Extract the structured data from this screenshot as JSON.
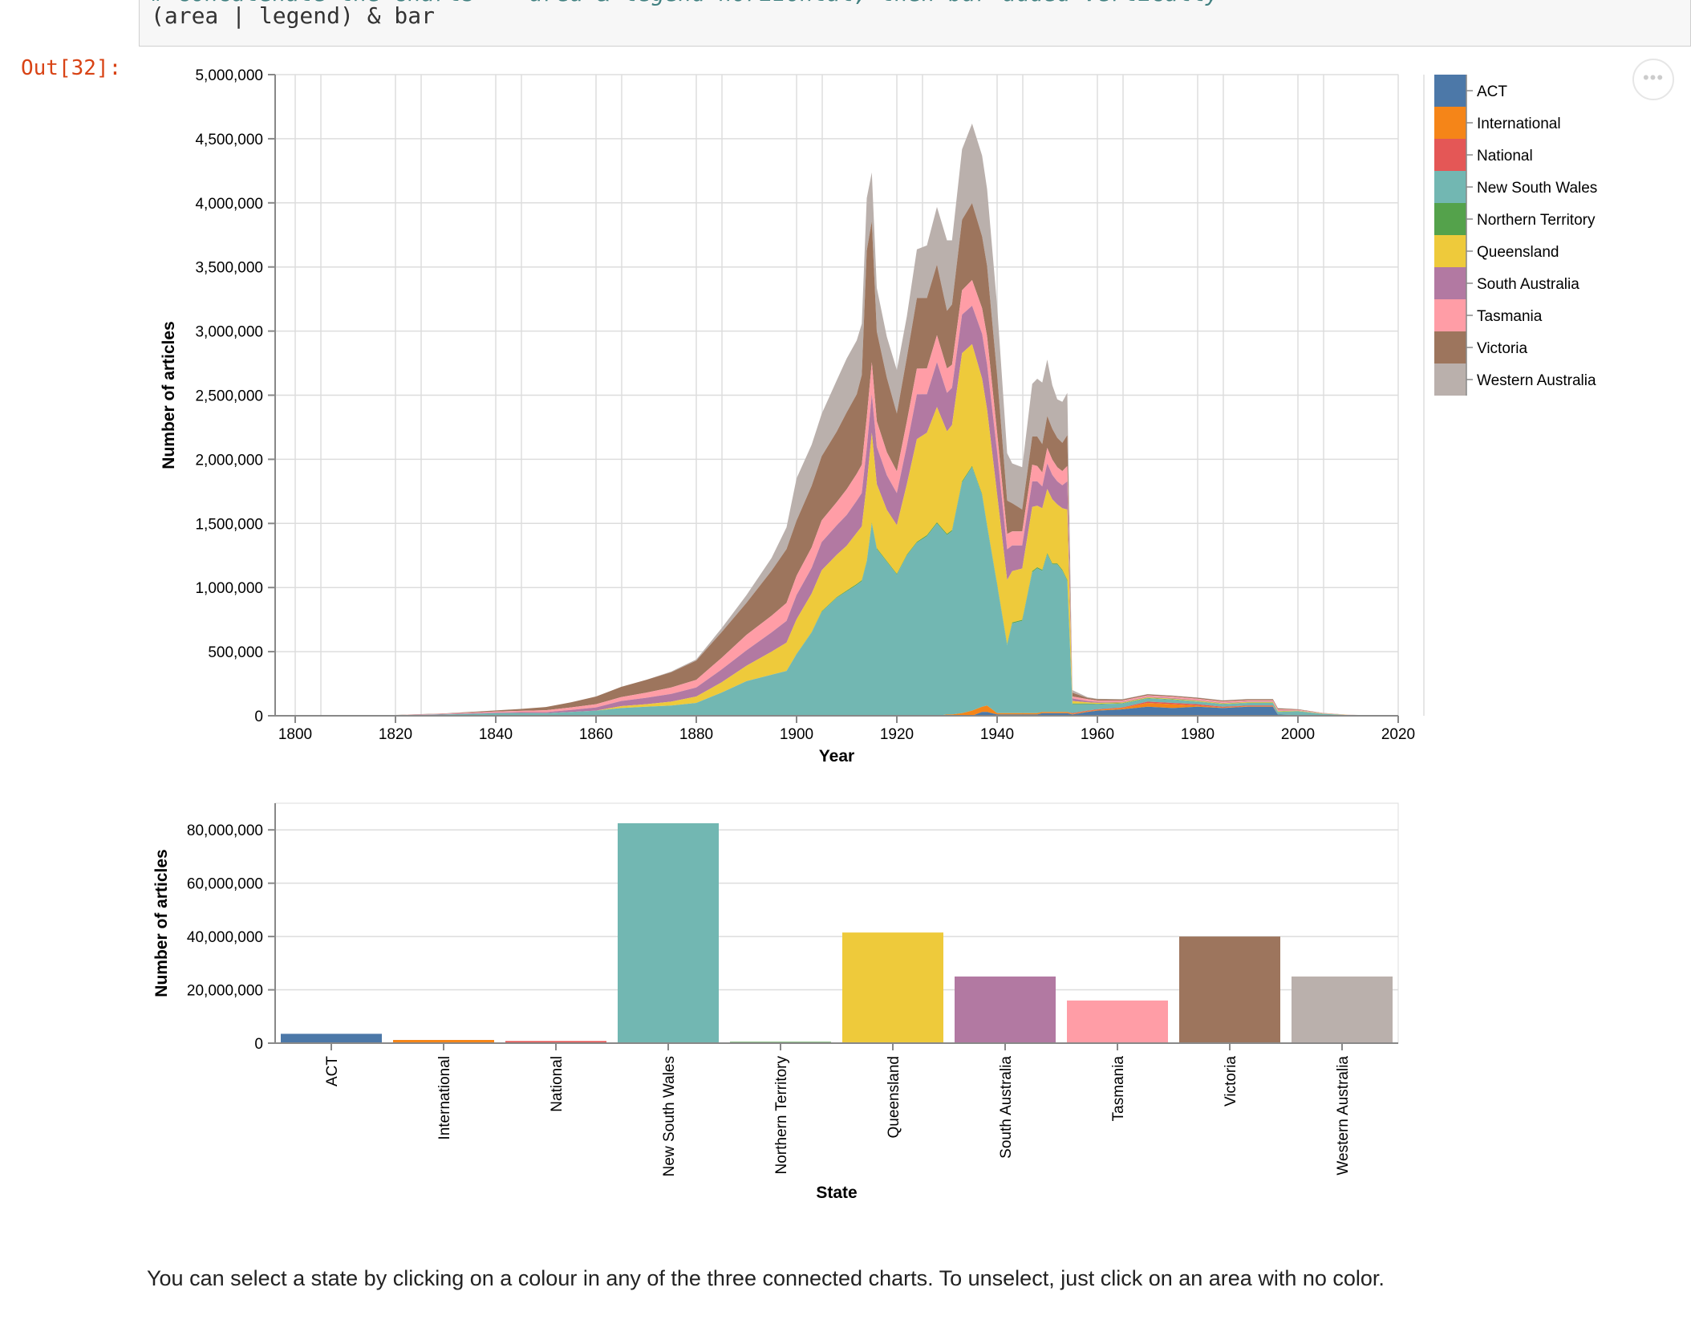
{
  "notebook": {
    "comment_line": "# concatenate the charts -- area & legend horizontal, then bar added vertically",
    "code_line": "(area | legend) & bar",
    "out_prompt": "Out[32]:",
    "more_icon": "ellipsis-icon",
    "more_glyph": "•••",
    "caption": "You can select a state by clicking on a colour in any of the three connected charts. To unselect, just click on an area with no color."
  },
  "chart_data": [
    {
      "type": "area",
      "stacked": true,
      "xlabel": "Year",
      "ylabel": "Number of articles",
      "xlim": [
        1796,
        2020
      ],
      "ylim": [
        0,
        5000000
      ],
      "x_ticks": [
        1800,
        1820,
        1840,
        1860,
        1880,
        1900,
        1920,
        1940,
        1960,
        1980,
        2000,
        2020
      ],
      "y_ticks": [
        0,
        500000,
        1000000,
        1500000,
        2000000,
        2500000,
        3000000,
        3500000,
        4000000,
        4500000,
        5000000
      ],
      "y_tick_labels": [
        "0",
        "500,000",
        "1,000,000",
        "1,500,000",
        "2,000,000",
        "2,500,000",
        "3,000,000",
        "3,500,000",
        "4,000,000",
        "4,500,000",
        "5,000,000"
      ],
      "grid": true,
      "legend_position": "right",
      "x": [
        1803,
        1820,
        1830,
        1840,
        1845,
        1850,
        1855,
        1860,
        1865,
        1870,
        1875,
        1880,
        1885,
        1890,
        1895,
        1898,
        1900,
        1903,
        1905,
        1908,
        1910,
        1912,
        1913,
        1914,
        1915,
        1916,
        1918,
        1920,
        1922,
        1924,
        1926,
        1928,
        1930,
        1931,
        1933,
        1935,
        1937,
        1938,
        1940,
        1942,
        1943,
        1945,
        1947,
        1948,
        1949,
        1950,
        1951,
        1952,
        1953,
        1954,
        1955,
        1958,
        1960,
        1965,
        1970,
        1975,
        1980,
        1985,
        1990,
        1995,
        1996,
        2000,
        2005,
        2010,
        2015,
        2020
      ],
      "series": [
        {
          "name": "ACT",
          "color": "#4c78a8",
          "values": [
            0,
            0,
            0,
            0,
            0,
            0,
            0,
            0,
            0,
            0,
            0,
            0,
            0,
            0,
            0,
            0,
            0,
            0,
            0,
            0,
            0,
            0,
            0,
            0,
            0,
            0,
            0,
            0,
            0,
            0,
            0,
            0,
            0,
            0,
            0,
            0,
            30000,
            30000,
            10000,
            10000,
            10000,
            10000,
            10000,
            10000,
            20000,
            20000,
            20000,
            20000,
            20000,
            20000,
            10000,
            30000,
            40000,
            50000,
            70000,
            60000,
            70000,
            60000,
            70000,
            70000,
            10000,
            5000,
            0,
            0,
            0,
            0
          ]
        },
        {
          "name": "International",
          "color": "#f58518",
          "values": [
            0,
            0,
            0,
            0,
            0,
            0,
            0,
            0,
            0,
            0,
            0,
            0,
            0,
            0,
            0,
            0,
            0,
            0,
            0,
            0,
            0,
            0,
            0,
            0,
            0,
            0,
            0,
            0,
            0,
            0,
            0,
            0,
            10000,
            10000,
            20000,
            40000,
            40000,
            50000,
            10000,
            10000,
            10000,
            10000,
            10000,
            10000,
            10000,
            10000,
            10000,
            10000,
            10000,
            10000,
            5000,
            5000,
            5000,
            10000,
            30000,
            30000,
            10000,
            5000,
            5000,
            5000,
            0,
            0,
            0,
            0,
            0,
            0
          ]
        },
        {
          "name": "National",
          "color": "#e45756",
          "values": [
            0,
            0,
            0,
            0,
            0,
            0,
            0,
            0,
            0,
            0,
            0,
            0,
            0,
            0,
            0,
            0,
            0,
            0,
            0,
            0,
            0,
            0,
            0,
            0,
            0,
            0,
            0,
            0,
            0,
            0,
            0,
            0,
            0,
            0,
            0,
            0,
            0,
            0,
            0,
            0,
            0,
            0,
            0,
            0,
            0,
            0,
            0,
            0,
            0,
            0,
            5000,
            5000,
            5000,
            5000,
            10000,
            10000,
            10000,
            5000,
            5000,
            5000,
            0,
            0,
            0,
            0,
            0,
            0
          ]
        },
        {
          "name": "New South Wales",
          "color": "#72b7b2",
          "values": [
            0,
            3000,
            10000,
            20000,
            22000,
            20000,
            30000,
            40000,
            60000,
            70000,
            80000,
            100000,
            180000,
            270000,
            320000,
            350000,
            480000,
            650000,
            810000,
            920000,
            970000,
            1020000,
            1050000,
            1200000,
            1500000,
            1300000,
            1200000,
            1100000,
            1250000,
            1350000,
            1400000,
            1500000,
            1400000,
            1430000,
            1800000,
            1900000,
            1650000,
            1400000,
            1000000,
            530000,
            700000,
            720000,
            1100000,
            1130000,
            1100000,
            1230000,
            1150000,
            1150000,
            1100000,
            1020000,
            70000,
            50000,
            40000,
            30000,
            25000,
            25000,
            20000,
            20000,
            20000,
            20000,
            20000,
            30000,
            15000,
            5000,
            3000,
            0
          ]
        },
        {
          "name": "Northern Territory",
          "color": "#54a24b",
          "values": [
            0,
            0,
            0,
            0,
            0,
            0,
            0,
            0,
            0,
            0,
            0,
            0,
            0,
            0,
            0,
            0,
            2000,
            3000,
            4000,
            5000,
            6000,
            7000,
            7000,
            7000,
            7000,
            7000,
            6000,
            6000,
            6000,
            7000,
            8000,
            8000,
            8000,
            8000,
            8000,
            8000,
            8000,
            8000,
            8000,
            8000,
            8000,
            8000,
            8000,
            8000,
            8000,
            8000,
            8000,
            8000,
            8000,
            8000,
            5000,
            5000,
            3000,
            3000,
            3000,
            3000,
            2000,
            2000,
            2000,
            2000,
            2000,
            1000,
            0,
            0,
            0,
            0
          ]
        },
        {
          "name": "Queensland",
          "color": "#eeca3b",
          "values": [
            0,
            0,
            0,
            0,
            0,
            0,
            0,
            0,
            15000,
            20000,
            30000,
            50000,
            80000,
            120000,
            180000,
            220000,
            270000,
            300000,
            320000,
            330000,
            350000,
            400000,
            420000,
            600000,
            700000,
            500000,
            400000,
            380000,
            550000,
            800000,
            800000,
            900000,
            800000,
            820000,
            1000000,
            950000,
            900000,
            900000,
            700000,
            500000,
            400000,
            400000,
            500000,
            480000,
            480000,
            500000,
            500000,
            460000,
            480000,
            550000,
            20000,
            10000,
            8000,
            6000,
            6000,
            5000,
            5000,
            5000,
            5000,
            5000,
            5000,
            3000,
            2000,
            1000,
            500,
            0
          ]
        },
        {
          "name": "South Australia",
          "color": "#b279a2",
          "values": [
            0,
            1000,
            3000,
            5000,
            6000,
            8000,
            15000,
            25000,
            40000,
            50000,
            60000,
            70000,
            100000,
            120000,
            150000,
            170000,
            190000,
            200000,
            220000,
            230000,
            240000,
            250000,
            260000,
            280000,
            300000,
            290000,
            270000,
            250000,
            300000,
            350000,
            300000,
            350000,
            300000,
            290000,
            300000,
            300000,
            350000,
            350000,
            330000,
            240000,
            200000,
            180000,
            200000,
            190000,
            170000,
            200000,
            190000,
            180000,
            180000,
            220000,
            20000,
            10000,
            8000,
            5000,
            5000,
            5000,
            5000,
            4000,
            4000,
            4000,
            3000,
            2000,
            1000,
            0,
            0,
            0
          ]
        },
        {
          "name": "Tasmania",
          "color": "#ff9da6",
          "values": [
            0,
            1000,
            3000,
            8000,
            10000,
            15000,
            20000,
            25000,
            30000,
            40000,
            50000,
            60000,
            90000,
            120000,
            130000,
            140000,
            150000,
            160000,
            170000,
            180000,
            200000,
            210000,
            220000,
            240000,
            250000,
            200000,
            180000,
            170000,
            190000,
            200000,
            200000,
            210000,
            190000,
            180000,
            190000,
            200000,
            200000,
            220000,
            150000,
            120000,
            110000,
            110000,
            130000,
            120000,
            110000,
            120000,
            120000,
            110000,
            110000,
            120000,
            15000,
            15000,
            10000,
            10000,
            10000,
            10000,
            10000,
            10000,
            10000,
            10000,
            10000,
            5000,
            2000,
            1000,
            0,
            0
          ]
        },
        {
          "name": "Victoria",
          "color": "#9d755d",
          "values": [
            0,
            1000,
            3000,
            8000,
            15000,
            25000,
            40000,
            60000,
            80000,
            100000,
            120000,
            150000,
            200000,
            250000,
            350000,
            420000,
            430000,
            480000,
            500000,
            550000,
            600000,
            620000,
            700000,
            1300000,
            1100000,
            700000,
            580000,
            450000,
            500000,
            550000,
            550000,
            550000,
            450000,
            470000,
            550000,
            600000,
            560000,
            550000,
            450000,
            260000,
            220000,
            170000,
            220000,
            230000,
            220000,
            250000,
            240000,
            230000,
            220000,
            240000,
            30000,
            10000,
            10000,
            8000,
            8000,
            8000,
            8000,
            8000,
            8000,
            8000,
            8000,
            5000,
            2000,
            1000,
            0,
            0
          ]
        },
        {
          "name": "Western Australia",
          "color": "#bab0ac",
          "values": [
            0,
            0,
            0,
            0,
            0,
            0,
            0,
            0,
            0,
            0,
            5000,
            10000,
            30000,
            60000,
            100000,
            170000,
            330000,
            320000,
            330000,
            400000,
            420000,
            420000,
            400000,
            410000,
            380000,
            340000,
            320000,
            340000,
            320000,
            380000,
            410000,
            450000,
            550000,
            500000,
            550000,
            620000,
            630000,
            600000,
            540000,
            370000,
            310000,
            330000,
            410000,
            450000,
            480000,
            440000,
            340000,
            300000,
            320000,
            330000,
            20000,
            5000,
            3000,
            3000,
            2000,
            2000,
            2000,
            2000,
            2000,
            2000,
            2000,
            1000,
            0,
            0,
            0,
            0
          ]
        }
      ]
    },
    {
      "type": "bar",
      "xlabel": "State",
      "ylabel": "Number of articles",
      "ylim": [
        0,
        90000000
      ],
      "y_ticks": [
        0,
        20000000,
        40000000,
        60000000,
        80000000
      ],
      "y_tick_labels": [
        "0",
        "20,000,000",
        "40,000,000",
        "60,000,000",
        "80,000,000"
      ],
      "grid": true,
      "categories": [
        "ACT",
        "International",
        "National",
        "New South Wales",
        "Northern Territory",
        "Queensland",
        "South Australia",
        "Tasmania",
        "Victoria",
        "Western Australia"
      ],
      "values": [
        3500000,
        1200000,
        800000,
        82500000,
        500000,
        41500000,
        25000000,
        16000000,
        40000000,
        25000000
      ],
      "colors": [
        "#4c78a8",
        "#f58518",
        "#e45756",
        "#72b7b2",
        "#54a24b",
        "#eeca3b",
        "#b279a2",
        "#ff9da6",
        "#9d755d",
        "#bab0ac"
      ]
    }
  ]
}
